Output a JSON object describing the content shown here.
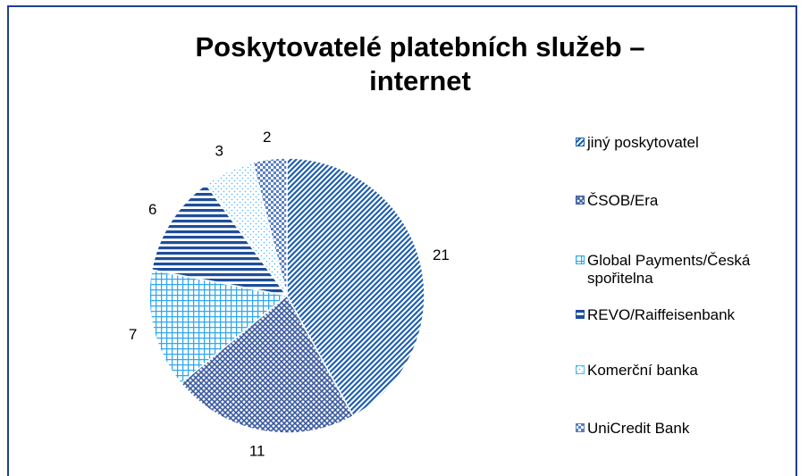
{
  "chart_data": {
    "type": "pie",
    "title": "Poskytovatelé platebních služeb – internet",
    "categories": [
      "jiný poskytovatel",
      "ČSOB/Era",
      "Global Payments/Česká spořitelna",
      "REVO/Raiffeisenbank",
      "Komerční banka",
      "UniCredit Bank"
    ],
    "values": [
      21,
      11,
      7,
      6,
      3,
      2
    ],
    "colors": [
      "#1f5fb0",
      "#3a5aa0",
      "#2fa8ee",
      "#1f4e9a",
      "#4db8ee",
      "#5a7fc0"
    ],
    "legend": "right"
  }
}
